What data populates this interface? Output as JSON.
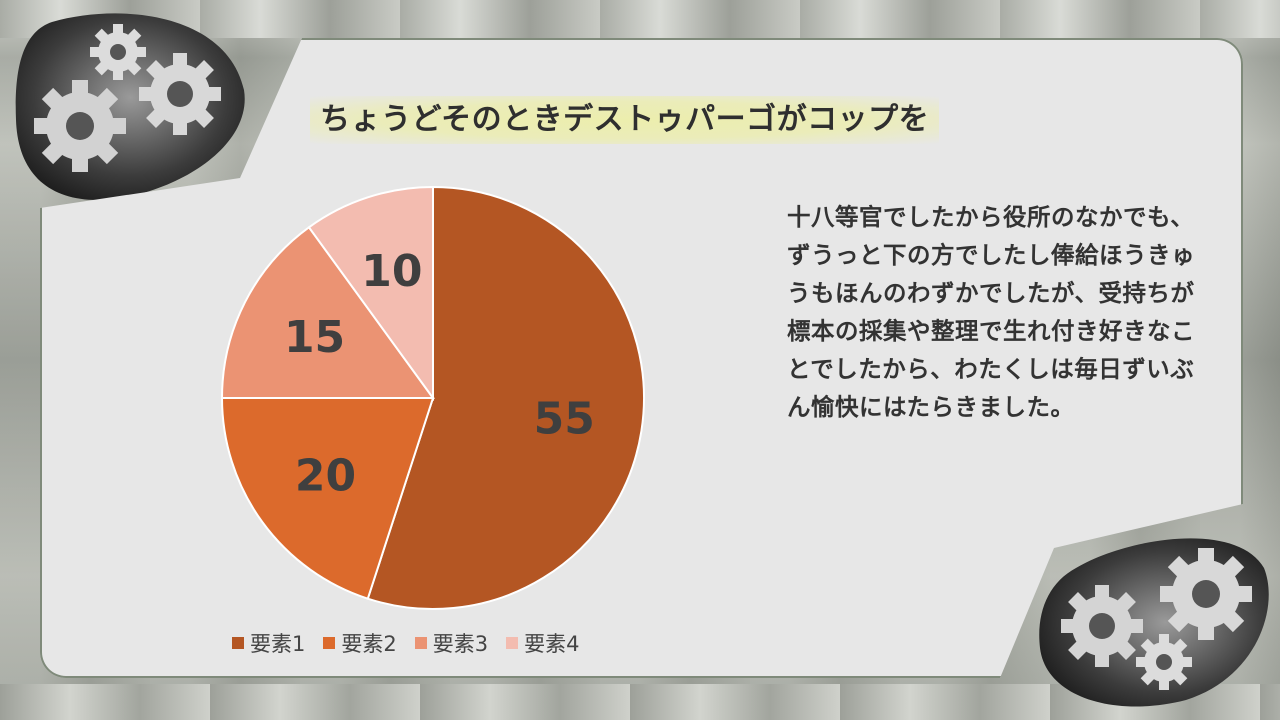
{
  "slide": {
    "title": "ちょうどそのときデストゥパーゴがコップを",
    "body": "十八等官でしたから役所のなかでも、ずうっと下の方でしたし俸給ほうきゅうもほんのわずかでしたが、受持ちが標本の採集や整理で生れ付き好きなことでしたから、わたくしは毎日ずいぶん愉快にはたらきました。"
  },
  "chart_data": {
    "type": "pie",
    "categories": [
      "要素1",
      "要素2",
      "要素3",
      "要素4"
    ],
    "values": [
      55,
      20,
      15,
      10
    ],
    "colors": [
      "#b45623",
      "#dc6a2c",
      "#eb9373",
      "#f3bcb0"
    ],
    "legend_position": "bottom",
    "start_angle": "12 o'clock",
    "direction": "clockwise"
  }
}
